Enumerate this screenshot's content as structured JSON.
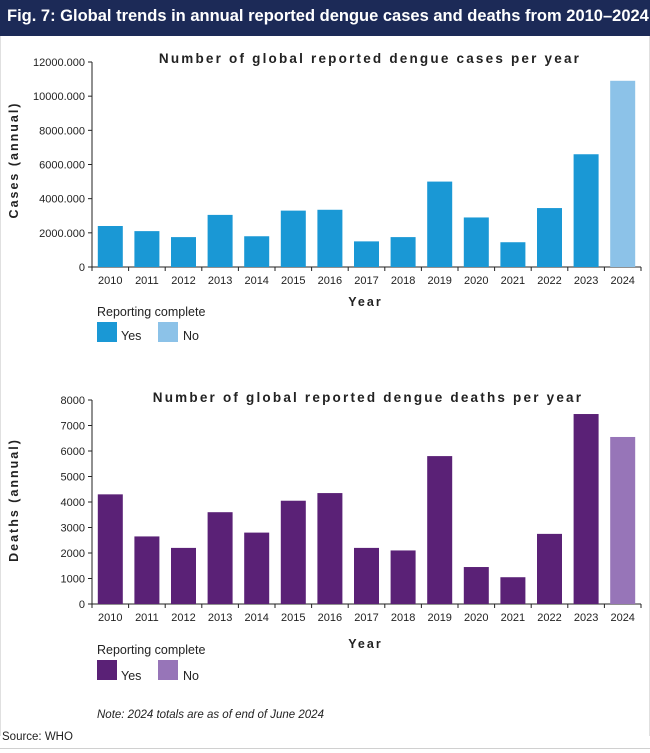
{
  "header": {
    "title": "Fig. 7: Global trends in annual reported dengue cases and deaths from 2010–2024"
  },
  "colors": {
    "header_bg": "#1c2a57",
    "cases_yes": "#1a98d5",
    "cases_no": "#8cc2e8",
    "deaths_yes": "#5a2176",
    "deaths_no": "#9775b8"
  },
  "note": "Note: 2024 totals are as of end of June 2024",
  "source": "Source: WHO",
  "legend_cases": {
    "title": "Reporting complete",
    "yes_label": "Yes",
    "no_label": "No"
  },
  "legend_deaths": {
    "title": "Reporting complete",
    "yes_label": "Yes",
    "no_label": "No"
  },
  "chart_data": [
    {
      "type": "bar",
      "title": "Number of global reported dengue cases per year",
      "xlabel": "Year",
      "ylabel": "Cases (annual)",
      "categories": [
        "2010",
        "2011",
        "2012",
        "2013",
        "2014",
        "2015",
        "2016",
        "2017",
        "2018",
        "2019",
        "2020",
        "2021",
        "2022",
        "2023",
        "2024"
      ],
      "values": [
        2400000,
        2100000,
        1750000,
        3050000,
        1800000,
        3300000,
        3350000,
        1500000,
        1750000,
        5000000,
        2900000,
        1450000,
        3450000,
        6600000,
        10900000
      ],
      "reporting_complete": [
        "Yes",
        "Yes",
        "Yes",
        "Yes",
        "Yes",
        "Yes",
        "Yes",
        "Yes",
        "Yes",
        "Yes",
        "Yes",
        "Yes",
        "Yes",
        "Yes",
        "No"
      ],
      "ylim": [
        0,
        12000000
      ],
      "yticks": [
        0,
        2000000,
        4000000,
        6000000,
        8000000,
        10000000,
        12000000
      ],
      "ytick_labels": [
        "0",
        "2000.000",
        "4000.000",
        "6000.000",
        "8000.000",
        "10000.000",
        "12000.000"
      ]
    },
    {
      "type": "bar",
      "title": "Number of global reported dengue deaths per year",
      "xlabel": "Year",
      "ylabel": "Deaths (annual)",
      "categories": [
        "2010",
        "2011",
        "2012",
        "2013",
        "2014",
        "2015",
        "2016",
        "2017",
        "2018",
        "2019",
        "2020",
        "2021",
        "2022",
        "2023",
        "2024"
      ],
      "values": [
        4300,
        2650,
        2200,
        3600,
        2800,
        4050,
        4350,
        2200,
        2100,
        5800,
        1450,
        1050,
        2750,
        7450,
        6550
      ],
      "reporting_complete": [
        "Yes",
        "Yes",
        "Yes",
        "Yes",
        "Yes",
        "Yes",
        "Yes",
        "Yes",
        "Yes",
        "Yes",
        "Yes",
        "Yes",
        "Yes",
        "Yes",
        "No"
      ],
      "ylim": [
        0,
        8000
      ],
      "yticks": [
        0,
        1000,
        2000,
        3000,
        4000,
        5000,
        6000,
        7000,
        8000
      ],
      "ytick_labels": [
        "0",
        "1000",
        "2000",
        "3000",
        "4000",
        "5000",
        "6000",
        "7000",
        "8000"
      ]
    }
  ]
}
